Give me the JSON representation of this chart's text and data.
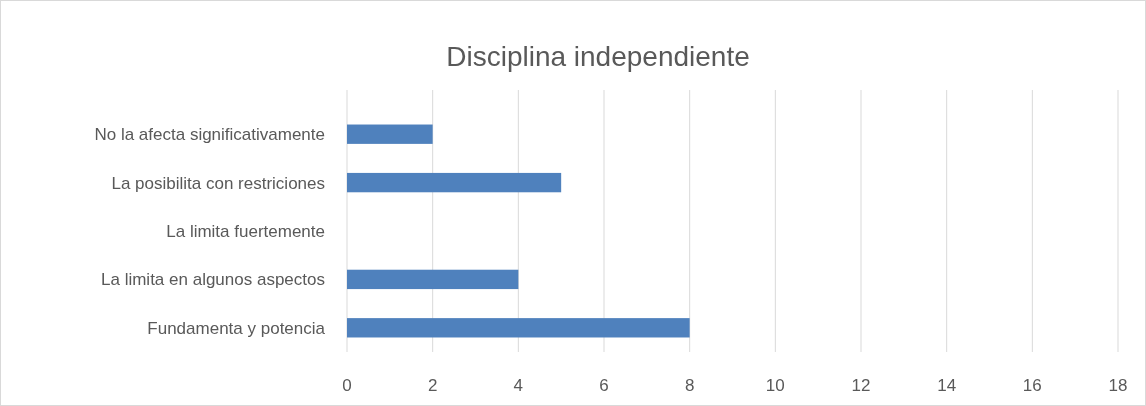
{
  "chart_data": {
    "type": "bar",
    "orientation": "horizontal",
    "title": "Disciplina independiente",
    "categories": [
      "No la afecta significativamente",
      "La posibilita con restriciones",
      "La limita fuertemente",
      "La limita en algunos aspectos",
      "Fundamenta y potencia"
    ],
    "values": [
      2,
      5,
      0,
      4,
      8
    ],
    "color": "#4f81bd",
    "xlim": [
      0,
      18
    ],
    "xticks": [
      0,
      2,
      4,
      6,
      8,
      10,
      12,
      14,
      16,
      18
    ],
    "grid": "x"
  }
}
